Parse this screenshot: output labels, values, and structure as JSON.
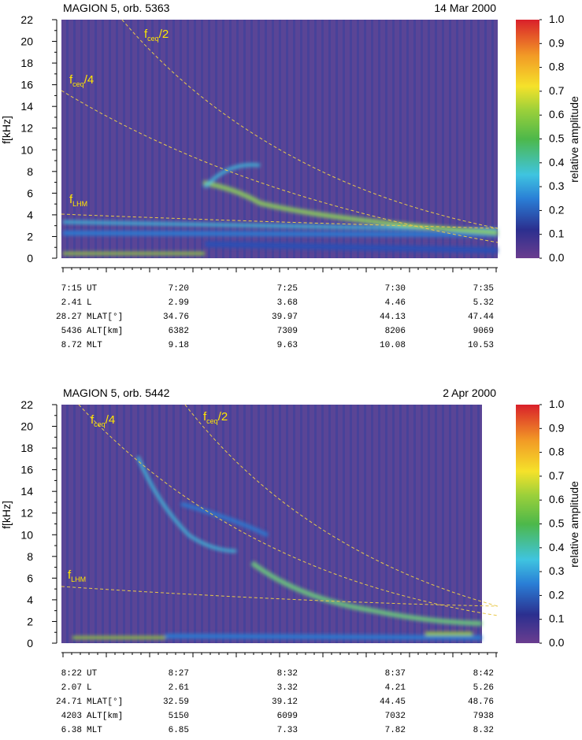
{
  "chart_data": [
    {
      "type": "spectrogram",
      "title": "MAGION 5, orb. 5363",
      "date": "14 Mar 2000",
      "ylabel": "f[kHz]",
      "ylim": [
        0,
        22
      ],
      "yticks": [
        0,
        2,
        4,
        6,
        8,
        10,
        12,
        14,
        16,
        18,
        20,
        22
      ],
      "colorbar": {
        "label": "relative amplitude",
        "clim": [
          0,
          1
        ],
        "ticks": [
          {
            "value": 0,
            "label": "0.0"
          },
          0.1,
          0.2,
          0.3,
          0.4,
          0.5,
          0.6,
          0.7,
          0.8,
          0.9,
          {
            "value": 1,
            "label": "1.0"
          }
        ]
      },
      "annotations": [
        {
          "base": "f",
          "sub": "ceq",
          "rest": "/2"
        },
        {
          "base": "f",
          "sub": "ceq",
          "rest": "/4"
        },
        {
          "base": "f",
          "sub": "LHM",
          "rest": ""
        }
      ],
      "ephemeris": {
        "labels": [
          "UT",
          "L",
          "MLAT[°]",
          "ALT[km]",
          "MLT"
        ],
        "rows": [
          [
            "7:15",
            "7:20",
            "7:25",
            "7:30",
            "7:35"
          ],
          [
            "2.41",
            "2.99",
            "3.68",
            "4.46",
            "5.32"
          ],
          [
            "28.27",
            "34.76",
            "39.97",
            "44.13",
            "47.44"
          ],
          [
            "5436",
            "6382",
            "7309",
            "8206",
            "9069"
          ],
          [
            "8.72",
            "9.18",
            "9.63",
            "10.08",
            "10.53"
          ]
        ]
      }
    },
    {
      "type": "spectrogram",
      "title": "MAGION 5, orb. 5442",
      "date": "2 Apr 2000",
      "ylabel": "f[kHz]",
      "ylim": [
        0,
        22
      ],
      "yticks": [
        0,
        2,
        4,
        6,
        8,
        10,
        12,
        14,
        16,
        18,
        20,
        22
      ],
      "colorbar": {
        "label": "relative amplitude",
        "clim": [
          0,
          1
        ],
        "ticks": [
          {
            "value": 0,
            "label": "0.0"
          },
          0.1,
          0.2,
          0.3,
          0.4,
          0.5,
          0.6,
          0.7,
          0.8,
          0.9,
          {
            "value": 1,
            "label": "1.0"
          }
        ]
      },
      "annotations": [
        {
          "base": "f",
          "sub": "ceq",
          "rest": "/4"
        },
        {
          "base": "f",
          "sub": "ceq",
          "rest": "/2"
        },
        {
          "base": "f",
          "sub": "LHM",
          "rest": ""
        }
      ],
      "ephemeris": {
        "labels": [
          "UT",
          "L",
          "MLAT[°]",
          "ALT[km]",
          "MLT"
        ],
        "rows": [
          [
            "8:22",
            "8:27",
            "8:32",
            "8:37",
            "8:42"
          ],
          [
            "2.07",
            "2.61",
            "3.32",
            "4.21",
            "5.26"
          ],
          [
            "24.71",
            "32.59",
            "39.12",
            "44.45",
            "48.76"
          ],
          [
            "4203",
            "5150",
            "6099",
            "7032",
            "7938"
          ],
          [
            "6.38",
            "6.85",
            "7.33",
            "7.82",
            "8.32"
          ]
        ]
      }
    }
  ]
}
